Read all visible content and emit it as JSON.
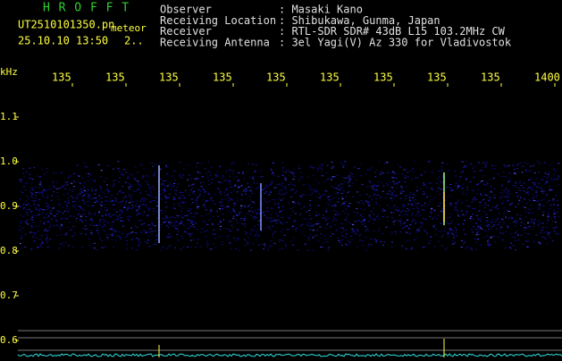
{
  "app": {
    "title": "H R O F F T",
    "file": "UT2510101350.pn",
    "mode": "meteor",
    "datetime": "25.10.10 13:50",
    "counter": "2.."
  },
  "header": [
    {
      "label": "Observer",
      "value": ": Masaki Kano"
    },
    {
      "label": "Receiving Location",
      "value": ": Shibukawa, Gunma, Japan"
    },
    {
      "label": "Receiver",
      "value": ": RTL-SDR SDR# 43dB L15 103.2MHz CW"
    },
    {
      "label": "Receiving Antenna",
      "value": ": 3el Yagi(V) Az 330 for Vladivostok"
    }
  ],
  "time_axis": {
    "labels": [
      "135",
      "135",
      "135",
      "135",
      "135",
      "135",
      "135",
      "135",
      "135",
      "1400"
    ]
  },
  "freq_axis": {
    "unit": "kHz",
    "labels": [
      "1.1",
      "1.0",
      "0.9",
      "0.8",
      "0.7",
      "0.6"
    ]
  }
}
